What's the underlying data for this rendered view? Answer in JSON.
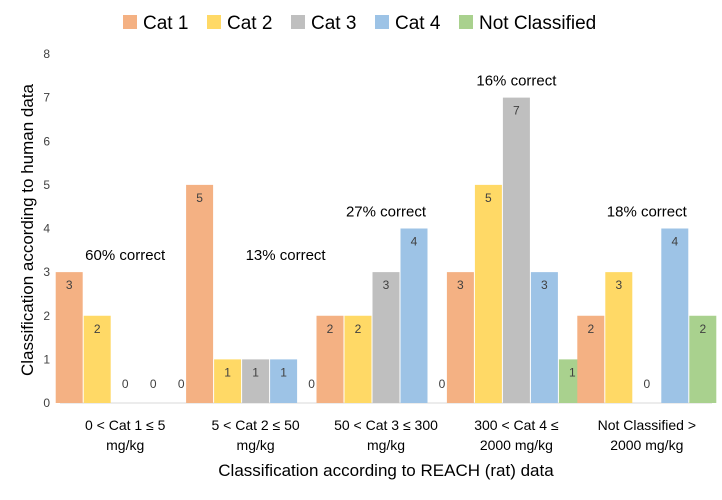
{
  "chart_data": {
    "type": "bar",
    "categories": [
      [
        "0 < Cat 1 ≤ 5",
        "mg/kg"
      ],
      [
        "5 < Cat 2 ≤ 50",
        "mg/kg"
      ],
      [
        "50 < Cat 3 ≤ 300",
        "mg/kg"
      ],
      [
        "300 < Cat 4 ≤",
        "2000 mg/kg"
      ],
      [
        "Not Classified >",
        "2000 mg/kg"
      ]
    ],
    "series": [
      {
        "name": "Cat 1",
        "color": "#F4B183",
        "values": [
          3,
          5,
          2,
          3,
          2
        ]
      },
      {
        "name": "Cat 2",
        "color": "#FFD966",
        "values": [
          2,
          1,
          2,
          5,
          3
        ]
      },
      {
        "name": "Cat 3",
        "color": "#BFBFBF",
        "values": [
          0,
          1,
          3,
          7,
          0
        ]
      },
      {
        "name": "Cat 4",
        "color": "#9DC3E6",
        "values": [
          0,
          1,
          4,
          3,
          4
        ]
      },
      {
        "name": "Not Classified",
        "color": "#A9D18E",
        "values": [
          0,
          0,
          0,
          1,
          2
        ]
      }
    ],
    "annotations": [
      "60% correct",
      "13% correct",
      "27% correct",
      "16% correct",
      "18% correct"
    ],
    "xlabel": "Classification according to REACH (rat) data",
    "ylabel": "Classification according to human data",
    "ylim": [
      0,
      8
    ],
    "yticks": [
      0,
      1,
      2,
      3,
      4,
      5,
      6,
      7,
      8
    ],
    "grid": false,
    "legend": "top"
  }
}
